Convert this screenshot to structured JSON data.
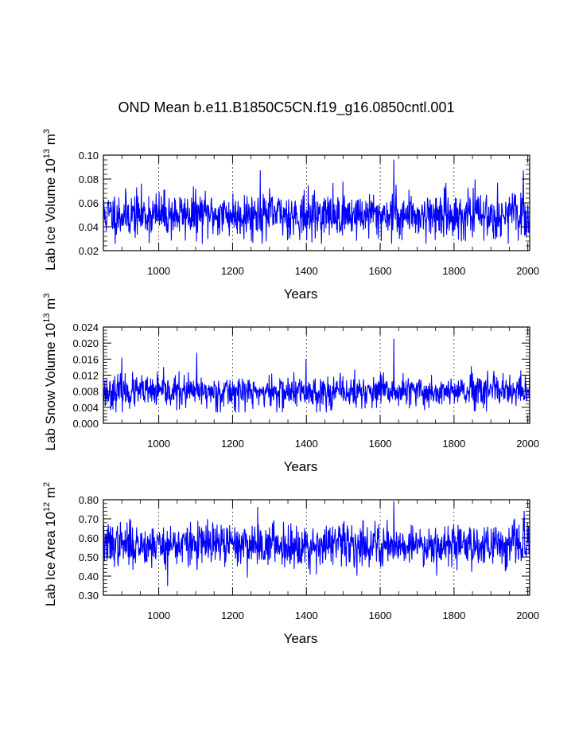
{
  "figure": {
    "title": "OND Mean b.e11.B1850C5CN.f19_g16.0850cntl.001"
  },
  "chart_data": [
    {
      "type": "line",
      "xlabel": "Years",
      "ylabel": {
        "base": "Lab Ice Volume 10",
        "exp": "13",
        "unit": " m",
        "unit_exp": "3"
      },
      "xlim": [
        850,
        2005
      ],
      "ylim": [
        0.02,
        0.1
      ],
      "x_ticks": [
        1000,
        1200,
        1400,
        1600,
        1800,
        2000
      ],
      "x_tick_labels": [
        "1000",
        "1200",
        "1400",
        "1600",
        "1800",
        "2000"
      ],
      "y_ticks": [
        0.02,
        0.04,
        0.06,
        0.08,
        0.1
      ],
      "y_tick_labels": [
        "0.02",
        "0.04",
        "0.06",
        "0.08",
        "0.10"
      ],
      "vertical_gridlines": [
        1000,
        1200,
        1400,
        1600,
        1800
      ],
      "series": [
        {
          "name": "Lab Ice Volume",
          "color": "#0000ff",
          "years": [
            850,
            2005
          ],
          "mean": 0.05,
          "std": 0.0095,
          "min": 0.026,
          "max": 0.096,
          "peaks": [
            [
              1275,
              0.087
            ],
            [
              1637,
              0.096
            ],
            [
              1988,
              0.087
            ]
          ],
          "troughs": [
            [
              1401,
              0.029
            ],
            [
              1820,
              0.028
            ]
          ],
          "seed": 11
        }
      ]
    },
    {
      "type": "line",
      "xlabel": "Years",
      "ylabel": {
        "base": "Lab Snow Volume 10",
        "exp": "13",
        "unit": " m",
        "unit_exp": "3"
      },
      "xlim": [
        850,
        2005
      ],
      "ylim": [
        0.0,
        0.024
      ],
      "x_ticks": [
        1000,
        1200,
        1400,
        1600,
        1800,
        2000
      ],
      "x_tick_labels": [
        "1000",
        "1200",
        "1400",
        "1600",
        "1800",
        "2000"
      ],
      "y_ticks": [
        0.0,
        0.004,
        0.008,
        0.012,
        0.016,
        0.02,
        0.024
      ],
      "y_tick_labels": [
        "0.000",
        "0.004",
        "0.008",
        "0.012",
        "0.016",
        "0.020",
        "0.024"
      ],
      "vertical_gridlines": [
        1000,
        1200,
        1400,
        1600,
        1800
      ],
      "series": [
        {
          "name": "Lab Snow Volume",
          "color": "#0000ff",
          "years": [
            850,
            2005
          ],
          "mean": 0.0078,
          "std": 0.002,
          "min": 0.0028,
          "max": 0.021,
          "peaks": [
            [
              1637,
              0.021
            ],
            [
              1103,
              0.0175
            ],
            [
              900,
              0.0163
            ],
            [
              1399,
              0.016
            ]
          ],
          "troughs": [
            [
              1320,
              0.0028
            ]
          ],
          "seed": 23
        }
      ]
    },
    {
      "type": "line",
      "xlabel": "Years",
      "ylabel": {
        "base": "Lab Ice Area 10",
        "exp": "12",
        "unit": " m",
        "unit_exp": "2"
      },
      "xlim": [
        850,
        2005
      ],
      "ylim": [
        0.3,
        0.8
      ],
      "x_ticks": [
        1000,
        1200,
        1400,
        1600,
        1800,
        2000
      ],
      "x_tick_labels": [
        "1000",
        "1200",
        "1400",
        "1600",
        "1800",
        "2000"
      ],
      "y_ticks": [
        0.3,
        0.4,
        0.5,
        0.6,
        0.7,
        0.8
      ],
      "y_tick_labels": [
        "0.30",
        "0.40",
        "0.50",
        "0.60",
        "0.70",
        "0.80"
      ],
      "vertical_gridlines": [
        1000,
        1200,
        1400,
        1600,
        1800
      ],
      "series": [
        {
          "name": "Lab Ice Area",
          "color": "#0000ff",
          "years": [
            850,
            2005
          ],
          "mean": 0.565,
          "std": 0.055,
          "min": 0.35,
          "max": 0.79,
          "peaks": [
            [
              1637,
              0.79
            ],
            [
              1268,
              0.76
            ],
            [
              1990,
              0.74
            ]
          ],
          "troughs": [
            [
              1024,
              0.35
            ],
            [
              1410,
              0.41
            ]
          ],
          "seed": 37
        }
      ]
    }
  ]
}
